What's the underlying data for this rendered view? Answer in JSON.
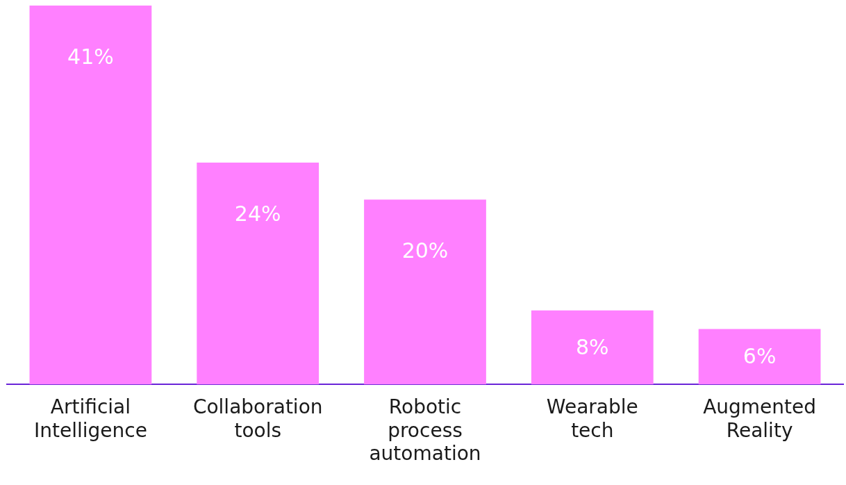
{
  "chart_data": {
    "type": "bar",
    "categories": [
      "Artificial Intelligence",
      "Collaboration tools",
      "Robotic process automation",
      "Wearable tech",
      "Augmented Reality"
    ],
    "values": [
      41,
      24,
      20,
      8,
      6
    ],
    "value_labels": [
      "41%",
      "24%",
      "20%",
      "8%",
      "6%"
    ],
    "color": "#ff80ff",
    "grid": false,
    "legend": false,
    "tick_labels": "x"
  }
}
